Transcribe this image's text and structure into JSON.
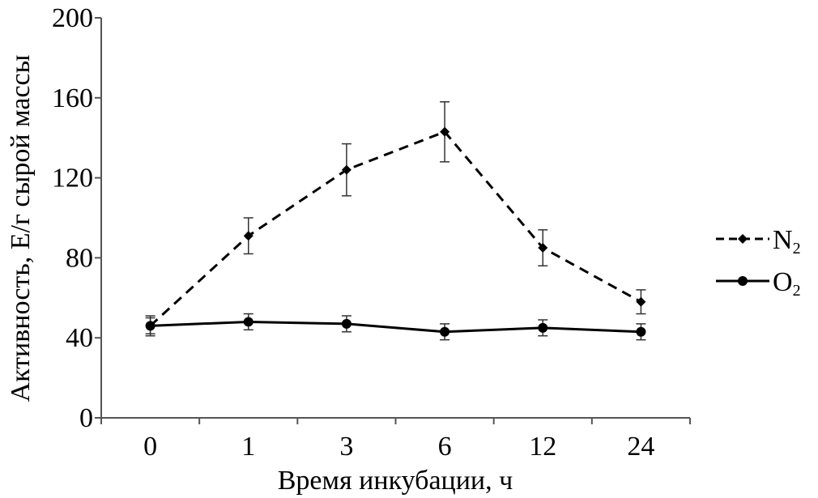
{
  "chart_data": {
    "type": "line",
    "categories": [
      "0",
      "1",
      "3",
      "6",
      "12",
      "24"
    ],
    "xlabel": "Время инкубации, ч",
    "ylabel": "Активность, Е/г сырой массы",
    "ylim": [
      0,
      200
    ],
    "yticks": [
      "0",
      "40",
      "80",
      "120",
      "160",
      "200"
    ],
    "grid": false,
    "legend_position": "right",
    "series": [
      {
        "name": "N",
        "name_subscript": "2",
        "style": "dashed",
        "marker": "diamond",
        "values": [
          46,
          91,
          124,
          143,
          85,
          58
        ],
        "errors": [
          5,
          9,
          13,
          15,
          9,
          6
        ],
        "color": "#000000"
      },
      {
        "name": "O",
        "name_subscript": "2",
        "style": "solid",
        "marker": "circle",
        "values": [
          46,
          48,
          47,
          43,
          45,
          43
        ],
        "errors": [
          4,
          4,
          4,
          4,
          4,
          4
        ],
        "color": "#000000"
      }
    ]
  }
}
